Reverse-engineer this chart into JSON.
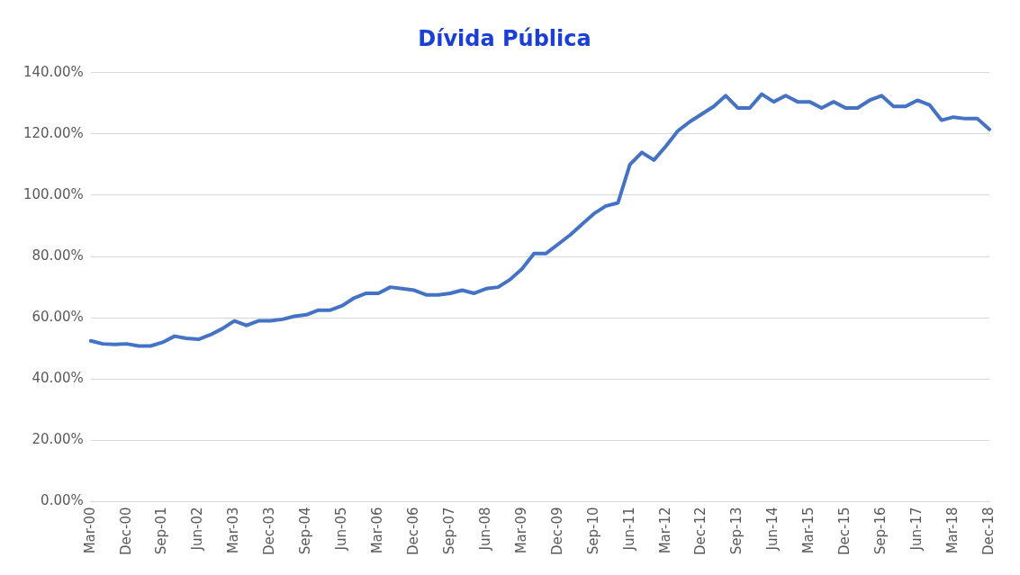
{
  "chart_data": {
    "type": "line",
    "title": "Dívida Pública",
    "categories": [
      "Mar-00",
      null,
      null,
      "Dec-00",
      null,
      null,
      "Sep-01",
      null,
      null,
      "Jun-02",
      null,
      null,
      "Mar-03",
      null,
      null,
      "Dec-03",
      null,
      null,
      "Sep-04",
      null,
      null,
      "Jun-05",
      null,
      null,
      "Mar-06",
      null,
      null,
      "Dec-06",
      null,
      null,
      "Sep-07",
      null,
      null,
      "Jun-08",
      null,
      null,
      "Mar-09",
      null,
      null,
      "Dec-09",
      null,
      null,
      "Sep-10",
      null,
      null,
      "Jun-11",
      null,
      null,
      "Mar-12",
      null,
      null,
      "Dec-12",
      null,
      null,
      "Sep-13",
      null,
      null,
      "Jun-14",
      null,
      null,
      "Mar-15",
      null,
      null,
      "Dec-15",
      null,
      null,
      "Sep-16",
      null,
      null,
      "Jun-17",
      null,
      null,
      "Mar-18",
      null,
      null,
      "Dec-18"
    ],
    "series": [
      {
        "color": "#4472c4",
        "values": [
          52.5,
          51.5,
          51.3,
          51.5,
          50.8,
          50.8,
          52,
          54,
          53.3,
          53,
          54.5,
          56.5,
          59,
          57.5,
          59,
          59,
          59.5,
          60.5,
          61,
          62.5,
          62.5,
          64,
          66.5,
          68,
          68,
          70,
          69.5,
          69,
          67.5,
          67.5,
          68,
          69,
          68,
          69.5,
          70,
          72.5,
          76,
          81,
          81,
          84,
          87,
          90.5,
          94,
          96.5,
          97.5,
          110,
          114,
          111.5,
          116,
          121,
          124,
          126.5,
          129,
          132.5,
          128.5,
          128.5,
          133,
          130.5,
          132.5,
          130.5,
          130.5,
          128.5,
          130.5,
          128.5,
          128.5,
          131,
          132.5,
          129,
          129,
          131,
          129.5,
          124.5,
          125.5,
          125,
          125,
          121.5
        ]
      }
    ],
    "ylim": [
      0,
      140
    ],
    "yticks": [
      {
        "value": 0,
        "label": "0.00%"
      },
      {
        "value": 20,
        "label": "20.00%"
      },
      {
        "value": 40,
        "label": "40.00%"
      },
      {
        "value": 60,
        "label": "60.00%"
      },
      {
        "value": 80,
        "label": "80.00%"
      },
      {
        "value": 100,
        "label": "100.00%"
      },
      {
        "value": 120,
        "label": "120.00%"
      },
      {
        "value": 140,
        "label": "140.00%"
      }
    ],
    "grid": "y",
    "legend": false,
    "marker": "none",
    "line_style": "solid"
  }
}
